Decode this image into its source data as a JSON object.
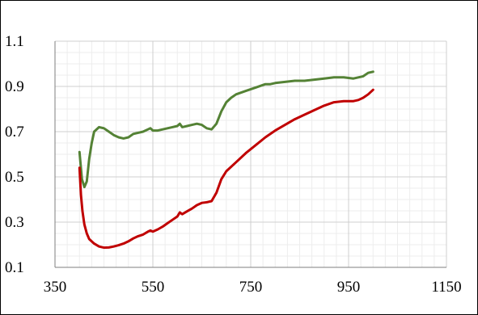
{
  "chart_data": {
    "type": "line",
    "title": "",
    "xlabel": "",
    "ylabel": "",
    "xlim": [
      350,
      1150
    ],
    "ylim": [
      0.1,
      1.1
    ],
    "x_major_ticks": [
      350,
      550,
      750,
      950,
      1150
    ],
    "y_major_ticks": [
      0.1,
      0.3,
      0.5,
      0.7,
      0.9,
      1.1
    ],
    "x_tick_labels": [
      "350",
      "550",
      "750",
      "950",
      "1150"
    ],
    "y_tick_labels": [
      "0.1",
      "0.3",
      "0.5",
      "0.7",
      "0.9",
      "1.1"
    ],
    "x_minor_step": 25,
    "y_minor_step": 0.05,
    "grid": true,
    "legend": "none",
    "series": [
      {
        "color": "#548235",
        "x": [
          400,
          405,
          410,
          415,
          420,
          425,
          430,
          440,
          450,
          460,
          470,
          480,
          490,
          500,
          510,
          520,
          530,
          540,
          545,
          550,
          560,
          570,
          580,
          590,
          600,
          605,
          610,
          620,
          630,
          640,
          650,
          660,
          670,
          680,
          690,
          700,
          710,
          720,
          740,
          760,
          780,
          790,
          800,
          820,
          840,
          860,
          880,
          900,
          920,
          940,
          960,
          970,
          980,
          990,
          1000
        ],
        "y": [
          0.61,
          0.49,
          0.455,
          0.48,
          0.58,
          0.65,
          0.7,
          0.72,
          0.715,
          0.7,
          0.685,
          0.675,
          0.67,
          0.675,
          0.69,
          0.695,
          0.7,
          0.71,
          0.715,
          0.705,
          0.705,
          0.71,
          0.715,
          0.72,
          0.725,
          0.735,
          0.72,
          0.725,
          0.73,
          0.735,
          0.73,
          0.715,
          0.71,
          0.735,
          0.79,
          0.83,
          0.85,
          0.865,
          0.88,
          0.895,
          0.91,
          0.91,
          0.915,
          0.92,
          0.925,
          0.925,
          0.93,
          0.935,
          0.94,
          0.94,
          0.935,
          0.94,
          0.945,
          0.96,
          0.965
        ]
      },
      {
        "color": "#C00000",
        "x": [
          400,
          403,
          406,
          410,
          415,
          420,
          430,
          440,
          450,
          460,
          470,
          480,
          490,
          500,
          510,
          520,
          530,
          540,
          545,
          550,
          560,
          570,
          580,
          590,
          600,
          605,
          610,
          620,
          630,
          640,
          650,
          660,
          670,
          680,
          690,
          700,
          720,
          740,
          760,
          780,
          800,
          820,
          840,
          860,
          880,
          900,
          920,
          940,
          960,
          970,
          980,
          990,
          1000
        ],
        "y": [
          0.54,
          0.42,
          0.35,
          0.29,
          0.25,
          0.225,
          0.205,
          0.192,
          0.187,
          0.188,
          0.192,
          0.198,
          0.205,
          0.215,
          0.228,
          0.238,
          0.245,
          0.258,
          0.263,
          0.258,
          0.268,
          0.28,
          0.295,
          0.31,
          0.325,
          0.343,
          0.335,
          0.348,
          0.36,
          0.375,
          0.385,
          0.388,
          0.393,
          0.43,
          0.49,
          0.525,
          0.565,
          0.605,
          0.64,
          0.675,
          0.705,
          0.73,
          0.755,
          0.775,
          0.795,
          0.815,
          0.83,
          0.835,
          0.835,
          0.84,
          0.85,
          0.865,
          0.885
        ]
      }
    ]
  }
}
